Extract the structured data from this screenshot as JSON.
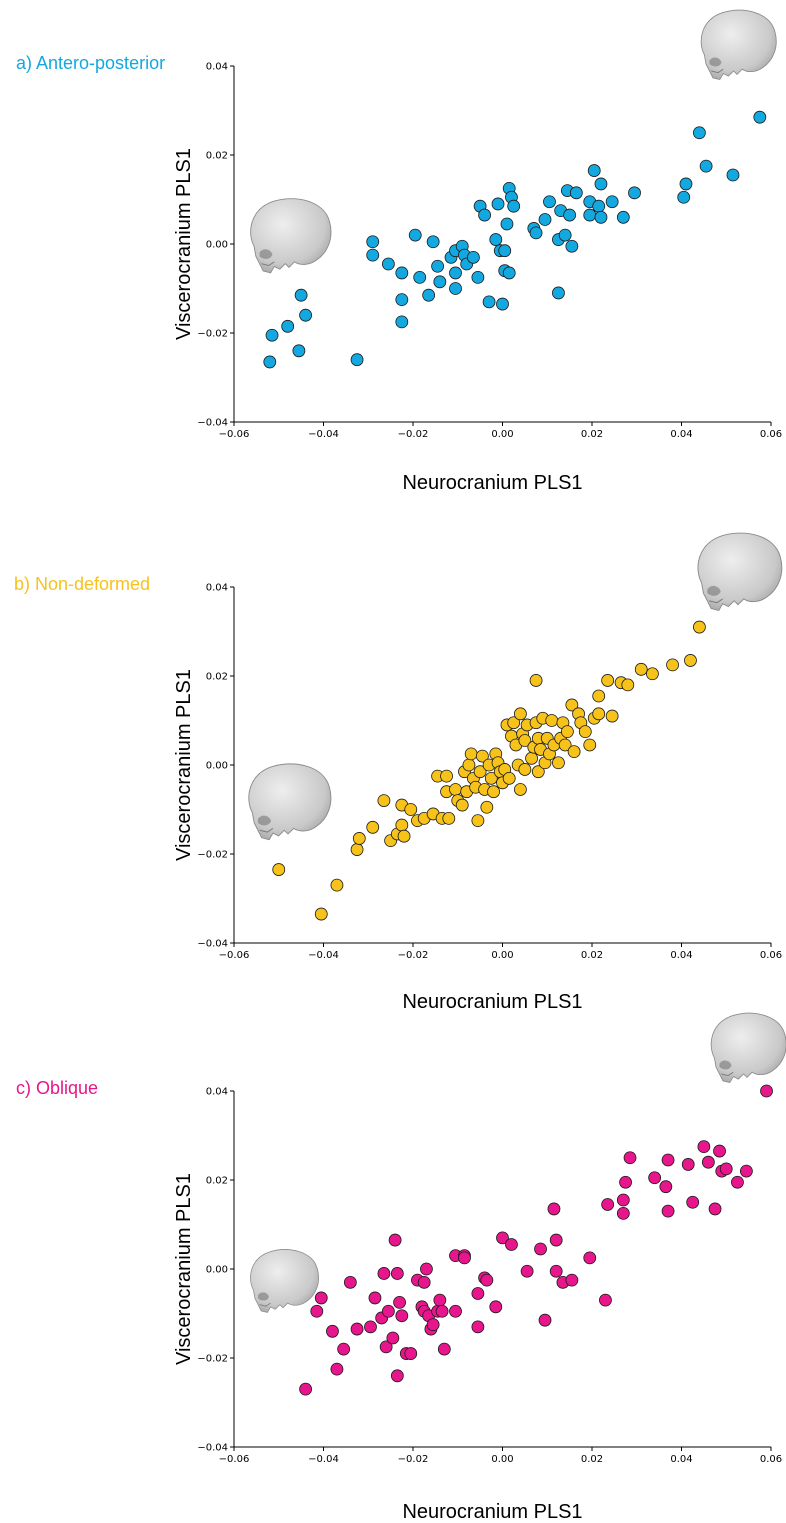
{
  "chart_data": [
    {
      "type": "scatter",
      "panel_label": "a) Antero-posterior",
      "color": "#13a8e0",
      "xlabel": "Neurocranium PLS1",
      "ylabel": "Viscerocranium PLS1",
      "xlim": [
        -0.06,
        0.06
      ],
      "ylim": [
        -0.04,
        0.04
      ],
      "xticks": [
        "−0.06",
        "−0.04",
        "−0.02",
        "0.00",
        "0.02",
        "0.04",
        "0.06"
      ],
      "yticks": [
        "0.04",
        "0.02",
        "0.00",
        "−0.02",
        "−0.04"
      ],
      "grid": false,
      "points": [
        [
          -0.052,
          -0.0265
        ],
        [
          -0.0515,
          -0.0205
        ],
        [
          -0.048,
          -0.0185
        ],
        [
          -0.0455,
          -0.024
        ],
        [
          -0.045,
          -0.0115
        ],
        [
          -0.044,
          -0.016
        ],
        [
          -0.0325,
          -0.026
        ],
        [
          -0.029,
          0.0005
        ],
        [
          -0.029,
          -0.0025
        ],
        [
          -0.0255,
          -0.0045
        ],
        [
          -0.0225,
          -0.0065
        ],
        [
          -0.0225,
          -0.0125
        ],
        [
          -0.0225,
          -0.0175
        ],
        [
          -0.0195,
          0.002
        ],
        [
          -0.0185,
          -0.0075
        ],
        [
          -0.0165,
          -0.0115
        ],
        [
          -0.0155,
          0.0005
        ],
        [
          -0.0145,
          -0.005
        ],
        [
          -0.014,
          -0.0085
        ],
        [
          -0.0115,
          -0.003
        ],
        [
          -0.0105,
          -0.0015
        ],
        [
          -0.0105,
          -0.0065
        ],
        [
          -0.0105,
          -0.01
        ],
        [
          -0.009,
          -0.0005
        ],
        [
          -0.0085,
          -0.0025
        ],
        [
          -0.008,
          -0.0045
        ],
        [
          -0.0065,
          -0.003
        ],
        [
          -0.0055,
          -0.0075
        ],
        [
          -0.005,
          0.0085
        ],
        [
          -0.004,
          0.0065
        ],
        [
          -0.003,
          -0.013
        ],
        [
          -0.0015,
          0.001
        ],
        [
          -0.001,
          0.009
        ],
        [
          -0.0005,
          -0.0015
        ],
        [
          0.0,
          -0.0135
        ],
        [
          0.0005,
          -0.006
        ],
        [
          0.0005,
          -0.0015
        ],
        [
          0.001,
          0.0045
        ],
        [
          0.0015,
          0.0125
        ],
        [
          0.0015,
          -0.0065
        ],
        [
          0.002,
          0.0105
        ],
        [
          0.0025,
          0.0085
        ],
        [
          0.007,
          0.0035
        ],
        [
          0.0075,
          0.0025
        ],
        [
          0.0095,
          0.0055
        ],
        [
          0.0105,
          0.0095
        ],
        [
          0.0125,
          -0.011
        ],
        [
          0.0125,
          0.001
        ],
        [
          0.013,
          0.0075
        ],
        [
          0.014,
          0.002
        ],
        [
          0.0145,
          0.012
        ],
        [
          0.015,
          0.0065
        ],
        [
          0.0155,
          -0.0005
        ],
        [
          0.0165,
          0.0115
        ],
        [
          0.0195,
          0.0095
        ],
        [
          0.0195,
          0.0065
        ],
        [
          0.0205,
          0.0165
        ],
        [
          0.0215,
          0.0085
        ],
        [
          0.022,
          0.0135
        ],
        [
          0.022,
          0.006
        ],
        [
          0.0245,
          0.0095
        ],
        [
          0.027,
          0.006
        ],
        [
          0.0295,
          0.0115
        ],
        [
          0.0405,
          0.0105
        ],
        [
          0.041,
          0.0135
        ],
        [
          0.044,
          0.025
        ],
        [
          0.0455,
          0.0175
        ],
        [
          0.0515,
          0.0155
        ],
        [
          0.0575,
          0.0285
        ]
      ]
    },
    {
      "type": "scatter",
      "panel_label": "b) Non-deformed",
      "color": "#f7c21a",
      "xlabel": "Neurocranium PLS1",
      "ylabel": "Viscerocranium PLS1",
      "xlim": [
        -0.06,
        0.06
      ],
      "ylim": [
        -0.04,
        0.04
      ],
      "xticks": [
        "−0.06",
        "−0.04",
        "−0.02",
        "0.00",
        "0.02",
        "0.04",
        "0.06"
      ],
      "yticks": [
        "0.04",
        "0.02",
        "0.00",
        "−0.02",
        "−0.04"
      ],
      "grid": false,
      "points": [
        [
          -0.05,
          -0.0235
        ],
        [
          -0.0405,
          -0.0335
        ],
        [
          -0.037,
          -0.027
        ],
        [
          -0.0325,
          -0.019
        ],
        [
          -0.032,
          -0.0165
        ],
        [
          -0.029,
          -0.014
        ],
        [
          -0.0265,
          -0.008
        ],
        [
          -0.025,
          -0.017
        ],
        [
          -0.0235,
          -0.0155
        ],
        [
          -0.0225,
          -0.0135
        ],
        [
          -0.0225,
          -0.009
        ],
        [
          -0.022,
          -0.016
        ],
        [
          -0.0205,
          -0.01
        ],
        [
          -0.019,
          -0.0125
        ],
        [
          -0.0175,
          -0.012
        ],
        [
          -0.0155,
          -0.011
        ],
        [
          -0.0145,
          -0.0025
        ],
        [
          -0.0135,
          -0.012
        ],
        [
          -0.0125,
          -0.0025
        ],
        [
          -0.0125,
          -0.006
        ],
        [
          -0.012,
          -0.012
        ],
        [
          -0.0105,
          -0.0055
        ],
        [
          -0.01,
          -0.008
        ],
        [
          -0.009,
          -0.009
        ],
        [
          -0.0085,
          -0.0015
        ],
        [
          -0.008,
          -0.006
        ],
        [
          -0.0075,
          0.0
        ],
        [
          -0.007,
          0.0025
        ],
        [
          -0.0065,
          -0.003
        ],
        [
          -0.006,
          -0.005
        ],
        [
          -0.0055,
          -0.0125
        ],
        [
          -0.005,
          -0.0015
        ],
        [
          -0.0045,
          0.002
        ],
        [
          -0.004,
          -0.0055
        ],
        [
          -0.0035,
          -0.0095
        ],
        [
          -0.003,
          0.0
        ],
        [
          -0.0025,
          -0.003
        ],
        [
          -0.002,
          -0.006
        ],
        [
          -0.0015,
          0.0025
        ],
        [
          -0.001,
          0.0005
        ],
        [
          -0.0005,
          -0.0015
        ],
        [
          0.0,
          -0.004
        ],
        [
          0.0005,
          -0.001
        ],
        [
          0.001,
          0.009
        ],
        [
          0.0015,
          -0.003
        ],
        [
          0.002,
          0.0065
        ],
        [
          0.0025,
          0.0095
        ],
        [
          0.003,
          0.0045
        ],
        [
          0.0035,
          0.0
        ],
        [
          0.004,
          -0.0055
        ],
        [
          0.004,
          0.0115
        ],
        [
          0.0045,
          0.007
        ],
        [
          0.005,
          0.0055
        ],
        [
          0.005,
          -0.001
        ],
        [
          0.0055,
          0.009
        ],
        [
          0.0065,
          0.0015
        ],
        [
          0.007,
          0.004
        ],
        [
          0.0075,
          0.019
        ],
        [
          0.0075,
          0.0095
        ],
        [
          0.008,
          -0.0015
        ],
        [
          0.008,
          0.006
        ],
        [
          0.0085,
          0.0035
        ],
        [
          0.009,
          0.0105
        ],
        [
          0.0095,
          0.0005
        ],
        [
          0.01,
          0.006
        ],
        [
          0.0105,
          0.0025
        ],
        [
          0.011,
          0.01
        ],
        [
          0.0115,
          0.0045
        ],
        [
          0.0125,
          0.0005
        ],
        [
          0.013,
          0.006
        ],
        [
          0.0135,
          0.0095
        ],
        [
          0.014,
          0.0045
        ],
        [
          0.0145,
          0.0075
        ],
        [
          0.0155,
          0.0135
        ],
        [
          0.016,
          0.003
        ],
        [
          0.017,
          0.0115
        ],
        [
          0.0175,
          0.0095
        ],
        [
          0.0185,
          0.0075
        ],
        [
          0.0195,
          0.0045
        ],
        [
          0.0205,
          0.0105
        ],
        [
          0.0215,
          0.0155
        ],
        [
          0.0215,
          0.0115
        ],
        [
          0.0235,
          0.019
        ],
        [
          0.0245,
          0.011
        ],
        [
          0.0265,
          0.0185
        ],
        [
          0.028,
          0.018
        ],
        [
          0.031,
          0.0215
        ],
        [
          0.0335,
          0.0205
        ],
        [
          0.038,
          0.0225
        ],
        [
          0.042,
          0.0235
        ],
        [
          0.044,
          0.031
        ]
      ]
    },
    {
      "type": "scatter",
      "panel_label": "c) Oblique",
      "color": "#e8168c",
      "xlabel": "Neurocranium PLS1",
      "ylabel": "Viscerocranium PLS1",
      "xlim": [
        -0.06,
        0.06
      ],
      "ylim": [
        -0.04,
        0.04
      ],
      "xticks": [
        "−0.06",
        "−0.04",
        "−0.02",
        "0.00",
        "0.02",
        "0.04",
        "0.06"
      ],
      "yticks": [
        "0.04",
        "0.02",
        "0.00",
        "−0.02",
        "−0.04"
      ],
      "grid": false,
      "points": [
        [
          -0.044,
          -0.027
        ],
        [
          -0.0415,
          -0.0095
        ],
        [
          -0.0405,
          -0.0065
        ],
        [
          -0.038,
          -0.014
        ],
        [
          -0.037,
          -0.0225
        ],
        [
          -0.0355,
          -0.018
        ],
        [
          -0.034,
          -0.003
        ],
        [
          -0.0325,
          -0.0135
        ],
        [
          -0.0295,
          -0.013
        ],
        [
          -0.0285,
          -0.0065
        ],
        [
          -0.027,
          -0.011
        ],
        [
          -0.0265,
          -0.001
        ],
        [
          -0.026,
          -0.0175
        ],
        [
          -0.0255,
          -0.0095
        ],
        [
          -0.0245,
          -0.0155
        ],
        [
          -0.024,
          0.0065
        ],
        [
          -0.0235,
          -0.024
        ],
        [
          -0.0235,
          -0.001
        ],
        [
          -0.023,
          -0.0075
        ],
        [
          -0.0225,
          -0.0105
        ],
        [
          -0.0215,
          -0.019
        ],
        [
          -0.0205,
          -0.019
        ],
        [
          -0.019,
          -0.0025
        ],
        [
          -0.018,
          -0.0085
        ],
        [
          -0.0175,
          -0.003
        ],
        [
          -0.0175,
          -0.0095
        ],
        [
          -0.017,
          0.0
        ],
        [
          -0.0165,
          -0.0105
        ],
        [
          -0.016,
          -0.0135
        ],
        [
          -0.0155,
          -0.0125
        ],
        [
          -0.0145,
          -0.0095
        ],
        [
          -0.014,
          -0.007
        ],
        [
          -0.0135,
          -0.0095
        ],
        [
          -0.013,
          -0.018
        ],
        [
          -0.0105,
          0.003
        ],
        [
          -0.0105,
          -0.0095
        ],
        [
          -0.0085,
          0.003
        ],
        [
          -0.0085,
          0.0025
        ],
        [
          -0.0055,
          -0.013
        ],
        [
          -0.0055,
          -0.0055
        ],
        [
          -0.004,
          -0.002
        ],
        [
          -0.0035,
          -0.0025
        ],
        [
          -0.0015,
          -0.0085
        ],
        [
          0.0,
          0.007
        ],
        [
          0.002,
          0.0055
        ],
        [
          0.0055,
          -0.0005
        ],
        [
          0.0085,
          0.0045
        ],
        [
          0.0095,
          -0.0115
        ],
        [
          0.0115,
          0.0135
        ],
        [
          0.012,
          0.0065
        ],
        [
          0.012,
          -0.0005
        ],
        [
          0.0135,
          -0.003
        ],
        [
          0.0155,
          -0.0025
        ],
        [
          0.0195,
          0.0025
        ],
        [
          0.023,
          -0.007
        ],
        [
          0.0235,
          0.0145
        ],
        [
          0.027,
          0.0155
        ],
        [
          0.027,
          0.0125
        ],
        [
          0.0275,
          0.0195
        ],
        [
          0.0285,
          0.025
        ],
        [
          0.034,
          0.0205
        ],
        [
          0.0365,
          0.0185
        ],
        [
          0.037,
          0.0245
        ],
        [
          0.037,
          0.013
        ],
        [
          0.0415,
          0.0235
        ],
        [
          0.0425,
          0.015
        ],
        [
          0.045,
          0.0275
        ],
        [
          0.046,
          0.024
        ],
        [
          0.0475,
          0.0135
        ],
        [
          0.0485,
          0.0265
        ],
        [
          0.049,
          0.022
        ],
        [
          0.05,
          0.0225
        ],
        [
          0.0525,
          0.0195
        ],
        [
          0.0545,
          0.022
        ],
        [
          0.059,
          0.04
        ]
      ]
    }
  ]
}
